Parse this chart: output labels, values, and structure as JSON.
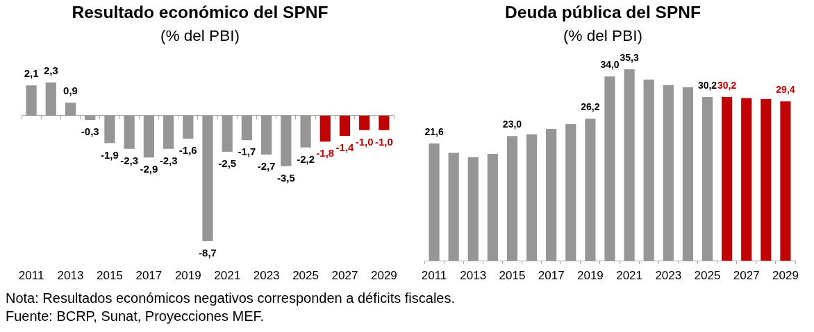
{
  "chart_data": [
    {
      "type": "bar",
      "title": "Resultado económico del SPNF",
      "subtitle": "(% del PBI)",
      "categories": [
        "2011",
        null,
        "2013",
        null,
        "2015",
        null,
        "2017",
        null,
        "2019",
        null,
        "2021",
        null,
        "2023",
        null,
        "2025",
        null,
        "2027",
        null,
        "2029"
      ],
      "values": [
        2.1,
        2.3,
        0.9,
        -0.3,
        -1.9,
        -2.3,
        -2.9,
        -2.3,
        -1.6,
        -8.7,
        -2.5,
        -1.7,
        -2.7,
        -3.5,
        -2.2,
        -1.8,
        -1.4,
        -1.0,
        -1.0
      ],
      "colors": [
        "#969696",
        "#969696",
        "#969696",
        "#969696",
        "#969696",
        "#969696",
        "#969696",
        "#969696",
        "#969696",
        "#969696",
        "#969696",
        "#969696",
        "#969696",
        "#969696",
        "#969696",
        "#c00000",
        "#c00000",
        "#c00000",
        "#c00000"
      ],
      "value_labels": [
        "2,1",
        "2,3",
        "0,9",
        "-0,3",
        "-1,9",
        "-2,3",
        "-2,9",
        "-2,3",
        "-1,6",
        "-8,7",
        "-2,5",
        "-1,7",
        "-2,7",
        "-3,5",
        "-2,2",
        "-1,8",
        "-1,4",
        "-1,0",
        "-1,0"
      ],
      "tick_labels": "x",
      "annotations": [
        "Nota: Resultados económicos negativos corresponden a déficits fiscales.",
        "Fuente: BCRP, Sunat, Proyecciones MEF."
      ]
    },
    {
      "type": "bar",
      "title": "Deuda pública del SPNF",
      "subtitle": "(% del PBI)",
      "categories": [
        "2011",
        null,
        "2013",
        null,
        "2015",
        null,
        "2017",
        null,
        "2019",
        null,
        "2021",
        null,
        "2023",
        null,
        "2025",
        null,
        "2027",
        null,
        "2029"
      ],
      "values": [
        21.6,
        19.9,
        19.1,
        19.7,
        23.0,
        23.3,
        24.3,
        25.2,
        26.2,
        34.0,
        35.3,
        33.4,
        32.4,
        32.0,
        30.2,
        30.2,
        30.0,
        29.8,
        29.4
      ],
      "colors": [
        "#969696",
        "#969696",
        "#969696",
        "#969696",
        "#969696",
        "#969696",
        "#969696",
        "#969696",
        "#969696",
        "#969696",
        "#969696",
        "#969696",
        "#969696",
        "#969696",
        "#969696",
        "#c00000",
        "#c00000",
        "#c00000",
        "#c00000"
      ],
      "value_labels": [
        "21,6",
        null,
        null,
        null,
        "23,0",
        null,
        null,
        null,
        "26,2",
        "34,0",
        "35,3",
        null,
        null,
        null,
        "30,2",
        "30,2",
        null,
        null,
        "29,4"
      ],
      "tick_labels": "x"
    }
  ]
}
